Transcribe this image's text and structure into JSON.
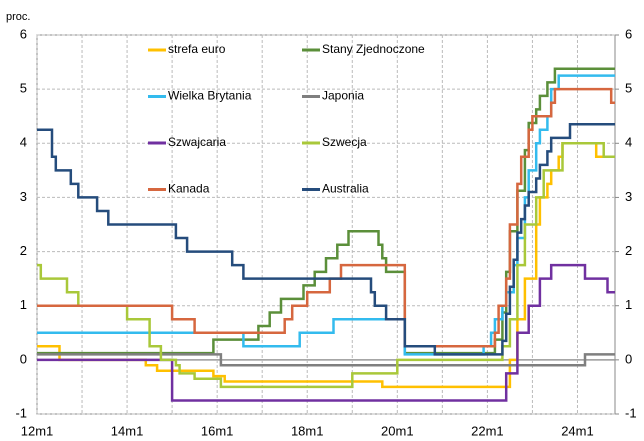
{
  "chart_data": {
    "type": "step_line",
    "y_label": "proc.",
    "xlim": [
      "12m1",
      "24m11"
    ],
    "xticks": [
      "12m1",
      "14m1",
      "16m1",
      "18m1",
      "20m1",
      "22m1",
      "24m1"
    ],
    "ylim": [
      -1,
      6
    ],
    "yticks": [
      -1,
      0,
      1,
      2,
      3,
      4,
      5,
      6
    ],
    "y2lim": [
      -1,
      6
    ],
    "y2ticks": [
      -1,
      0,
      1,
      2,
      3,
      4,
      5,
      6
    ],
    "grid": true,
    "series": [
      {
        "name": "strefa euro",
        "color": "#ffc000",
        "x": [
          "12m1",
          "12m7",
          "14m6",
          "14m9",
          "15m12",
          "16m3",
          "19m9",
          "22m7",
          "22m9",
          "22m11",
          "23m2",
          "23m3",
          "23m5",
          "23m6",
          "23m8",
          "23m9",
          "24m6"
        ],
        "values": [
          0.25,
          0,
          -0.1,
          -0.2,
          -0.3,
          -0.4,
          -0.5,
          0,
          0.75,
          1.5,
          2.5,
          3,
          3.25,
          3.5,
          3.75,
          4,
          3.75
        ]
      },
      {
        "name": "Stany Zjednoczone",
        "color": "#5b8f3a",
        "x": [
          "12m1",
          "15m12",
          "16m12",
          "17m3",
          "17m6",
          "17m12",
          "18m3",
          "18m6",
          "18m9",
          "18m12",
          "19m8",
          "19m9",
          "19m10",
          "20m3",
          "22m3",
          "22m5",
          "22m6",
          "22m7",
          "22m9",
          "22m11",
          "22m12",
          "23m2",
          "23m3",
          "23m5",
          "23m7"
        ],
        "values": [
          0.125,
          0.375,
          0.625,
          0.875,
          1.125,
          1.375,
          1.625,
          1.875,
          2.125,
          2.375,
          2.125,
          1.875,
          1.625,
          0.125,
          0.375,
          0.875,
          1.625,
          2.375,
          3.125,
          3.875,
          4.375,
          4.625,
          4.875,
          5.125,
          5.375
        ]
      },
      {
        "name": "Wielka Brytania",
        "color": "#33bbee",
        "x": [
          "12m1",
          "16m8",
          "17m11",
          "18m8",
          "20m3",
          "21m12",
          "22m2",
          "22m3",
          "22m5",
          "22m6",
          "22m8",
          "22m9",
          "22m11",
          "22m12",
          "23m2",
          "23m3",
          "23m5",
          "23m6",
          "23m8"
        ],
        "values": [
          0.5,
          0.25,
          0.5,
          0.75,
          0.1,
          0.25,
          0.5,
          0.75,
          1,
          1.25,
          1.75,
          2.25,
          3,
          3.5,
          4,
          4.25,
          4.5,
          5,
          5.25
        ]
      },
      {
        "name": "Japonia",
        "color": "#7f7f7f",
        "x": [
          "12m1",
          "16m2",
          "24m3"
        ],
        "values": [
          0.1,
          -0.1,
          0.1
        ]
      },
      {
        "name": "Szwajcaria",
        "color": "#7030a0",
        "x": [
          "12m1",
          "15m1",
          "22m6",
          "22m9",
          "22m12",
          "23m3",
          "23m6",
          "24m3",
          "24m9"
        ],
        "values": [
          0,
          -0.75,
          -0.25,
          0.5,
          1,
          1.5,
          1.75,
          1.5,
          1.25
        ]
      },
      {
        "name": "Szwecja",
        "color": "#a9c83a",
        "x": [
          "12m1",
          "12m2",
          "12m9",
          "12m12",
          "14m1",
          "14m7",
          "14m10",
          "15m2",
          "15m3",
          "15m7",
          "16m2",
          "19m1",
          "20m1",
          "22m5",
          "22m7",
          "22m9",
          "22m11",
          "23m2",
          "23m4",
          "23m9",
          "24m8"
        ],
        "values": [
          1.75,
          1.5,
          1.25,
          1,
          0.75,
          0.25,
          0,
          -0.1,
          -0.25,
          -0.35,
          -0.5,
          -0.25,
          0,
          0.25,
          0.75,
          1.75,
          2.5,
          3,
          3.5,
          4,
          3.75
        ]
      },
      {
        "name": "Kanada",
        "color": "#d6673f",
        "x": [
          "12m1",
          "15m1",
          "15m7",
          "17m7",
          "17m9",
          "18m1",
          "18m7",
          "18m10",
          "20m3",
          "22m3",
          "22m4",
          "22m6",
          "22m7",
          "22m9",
          "22m10",
          "22m12",
          "23m1",
          "23m6",
          "23m7",
          "24m10"
        ],
        "values": [
          1,
          0.75,
          0.5,
          0.75,
          1,
          1.25,
          1.5,
          1.75,
          0.25,
          0.5,
          1,
          1.5,
          2.5,
          3.25,
          3.75,
          4.25,
          4.5,
          4.75,
          5,
          4.75
        ]
      },
      {
        "name": "Australia",
        "color": "#254c7c",
        "x": [
          "12m1",
          "12m5",
          "12m6",
          "12m10",
          "12m12",
          "13m5",
          "13m8",
          "15m2",
          "15m5",
          "16m5",
          "16m8",
          "19m6",
          "19m7",
          "19m10",
          "20m3",
          "20m11",
          "22m5",
          "22m6",
          "22m7",
          "22m8",
          "22m9",
          "22m10",
          "22m11",
          "22m12",
          "23m2",
          "23m3",
          "23m5",
          "23m6",
          "23m11"
        ],
        "values": [
          4.25,
          3.75,
          3.5,
          3.25,
          3,
          2.75,
          2.5,
          2.25,
          2,
          1.75,
          1.5,
          1.25,
          1,
          0.75,
          0.25,
          0.1,
          0.35,
          0.85,
          1.35,
          1.85,
          2.35,
          2.6,
          2.85,
          3.1,
          3.35,
          3.6,
          3.85,
          4.1,
          4.35
        ]
      }
    ]
  }
}
